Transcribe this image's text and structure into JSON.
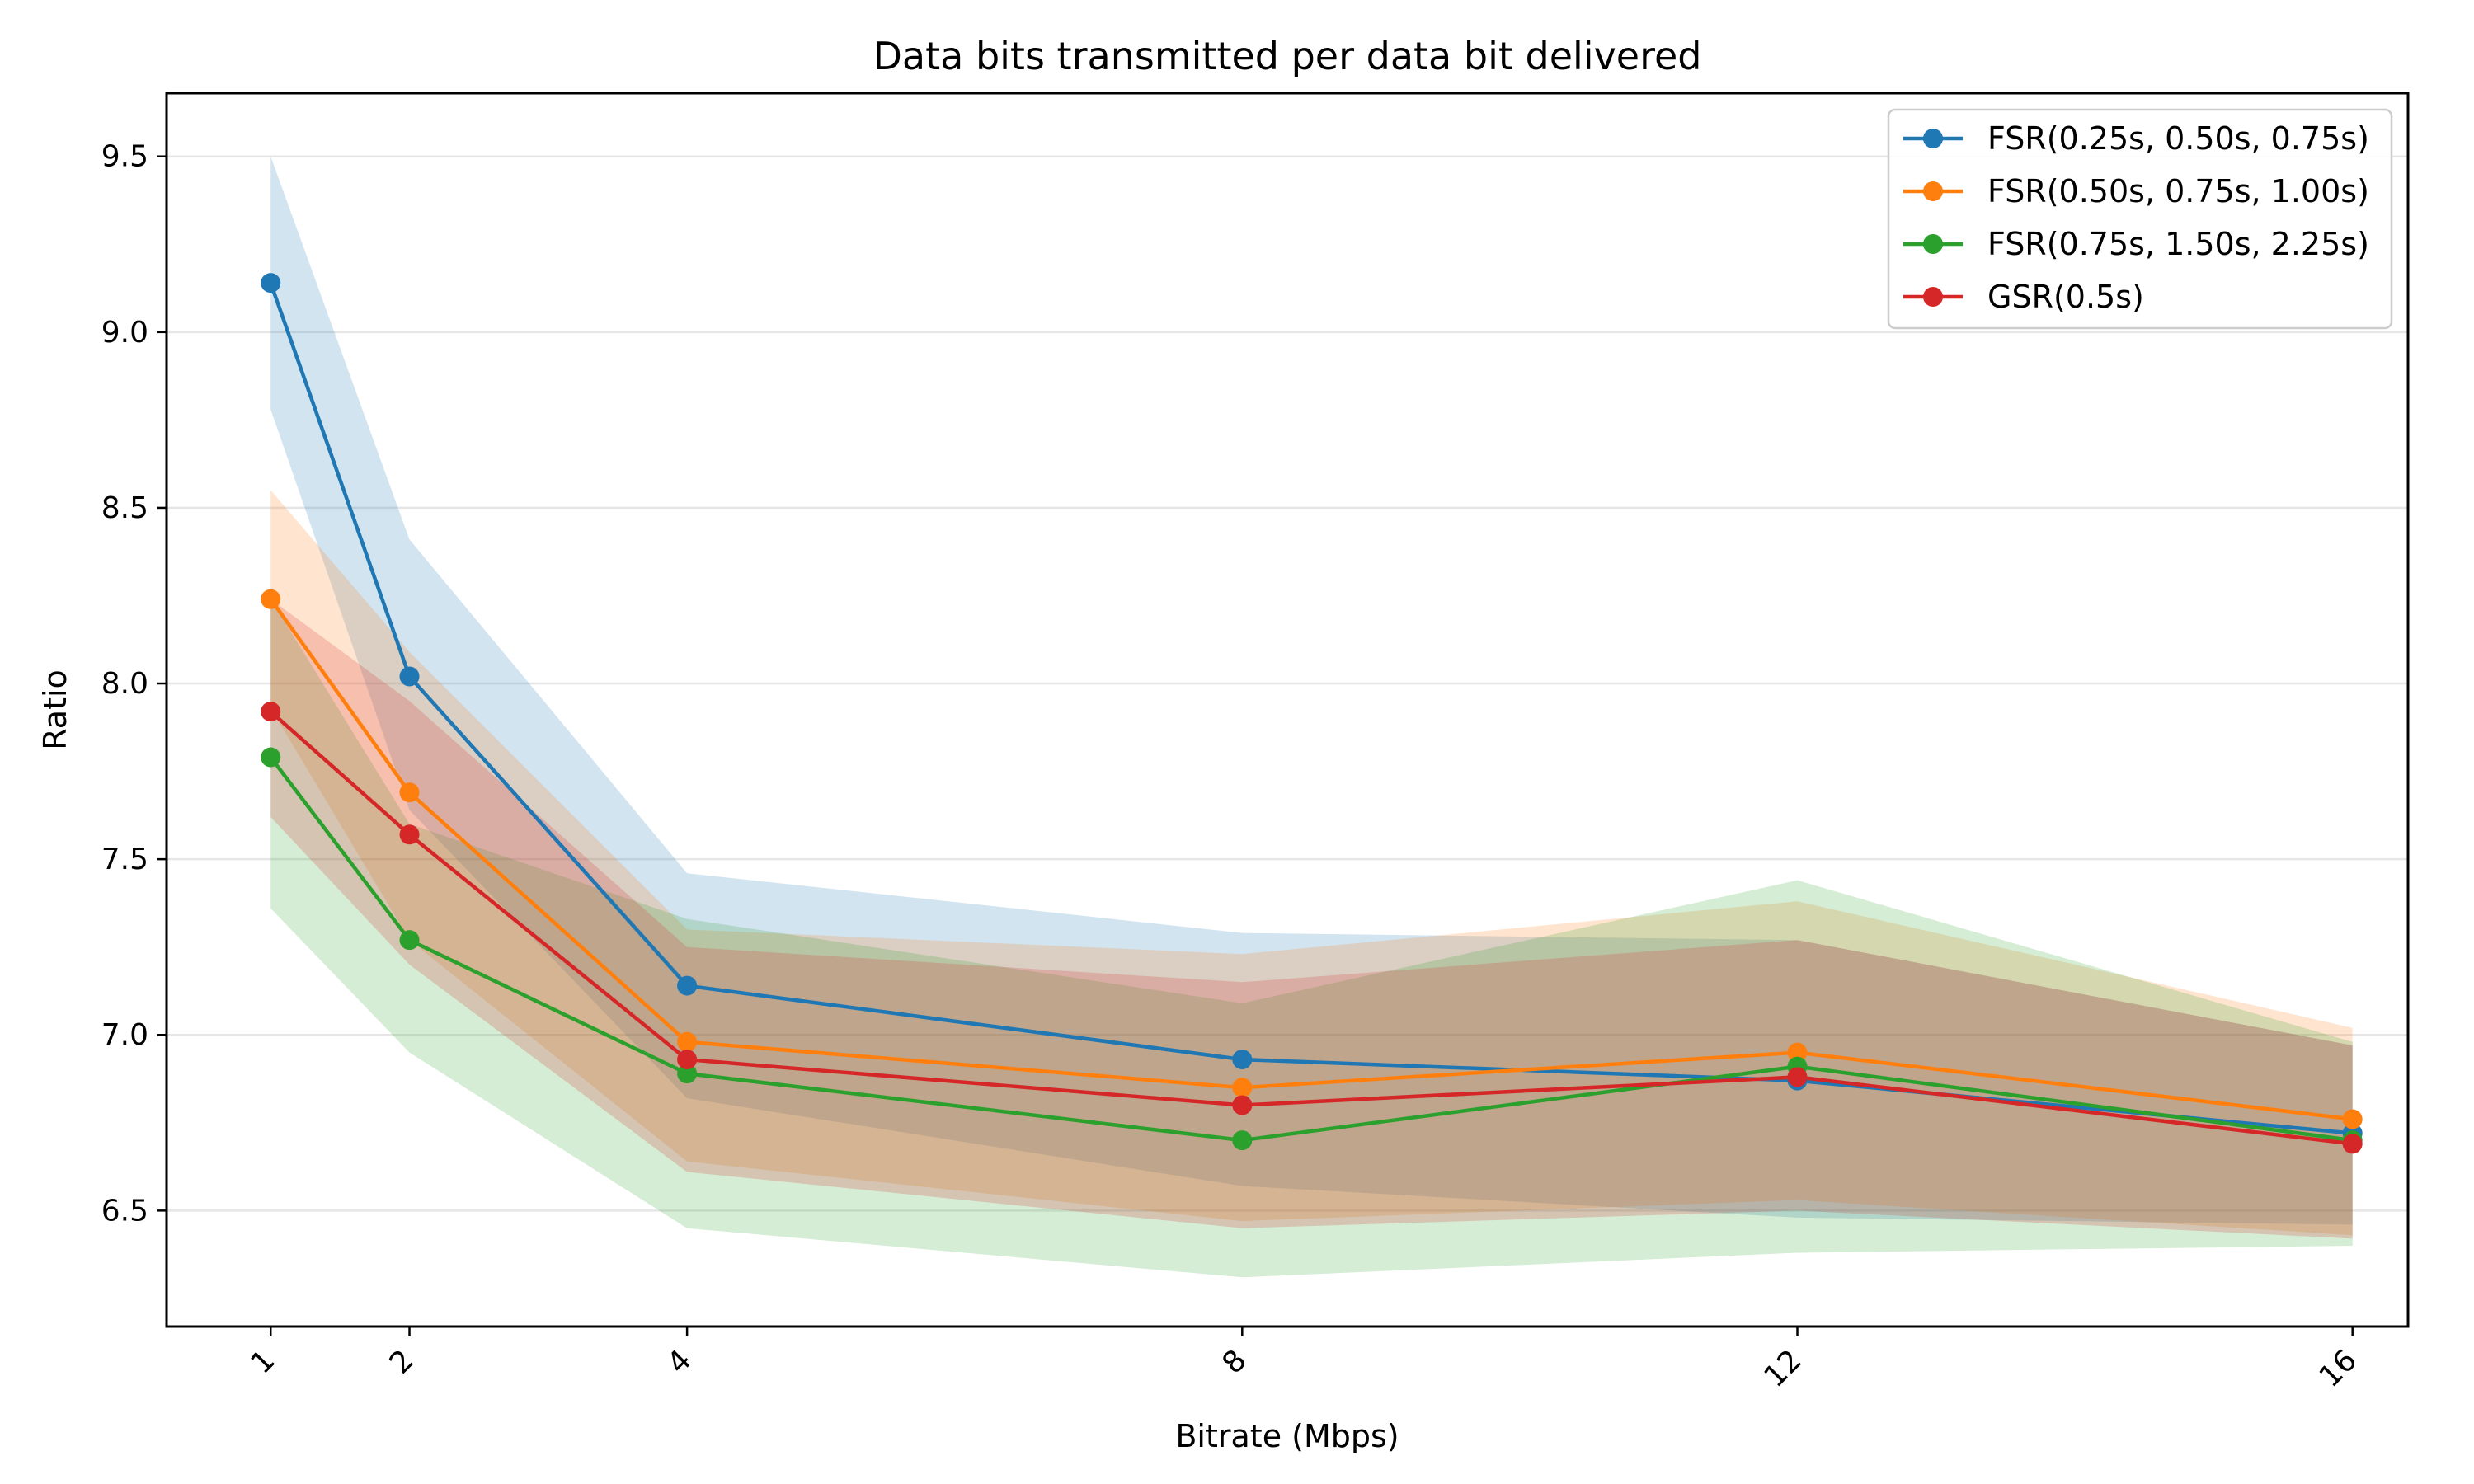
{
  "chart_data": {
    "type": "line",
    "title": "Data bits transmitted per data bit delivered",
    "xlabel": "Bitrate (Mbps)",
    "ylabel": "Ratio",
    "x": [
      1,
      2,
      4,
      8,
      12,
      16
    ],
    "x_tick_labels": [
      "1",
      "2",
      "4",
      "8",
      "12",
      "16"
    ],
    "y_ticks": [
      6.5,
      7.0,
      7.5,
      8.0,
      8.5,
      9.0,
      9.5
    ],
    "y_tick_labels": [
      "6.5",
      "7.0",
      "7.5",
      "8.0",
      "8.5",
      "9.0",
      "9.5"
    ],
    "xlim": [
      0.25,
      16.4
    ],
    "ylim": [
      6.17,
      9.68
    ],
    "grid": "horizontal",
    "legend_position": "top-right",
    "series": [
      {
        "name": "FSR(0.25s, 0.50s, 0.75s)",
        "color": "#1f77b4",
        "values": [
          9.14,
          8.02,
          7.14,
          6.93,
          6.87,
          6.72
        ],
        "band_upper": [
          9.5,
          8.41,
          7.46,
          7.29,
          7.27,
          6.97
        ],
        "band_lower": [
          8.78,
          7.64,
          6.82,
          6.57,
          6.48,
          6.46
        ]
      },
      {
        "name": "FSR(0.50s, 0.75s, 1.00s)",
        "color": "#ff7f0e",
        "values": [
          8.24,
          7.69,
          6.98,
          6.85,
          6.95,
          6.76
        ],
        "band_upper": [
          8.55,
          8.09,
          7.3,
          7.23,
          7.38,
          7.02
        ],
        "band_lower": [
          7.93,
          7.27,
          6.64,
          6.47,
          6.53,
          6.43
        ]
      },
      {
        "name": "FSR(0.75s, 1.50s, 2.25s)",
        "color": "#2ca02c",
        "values": [
          7.79,
          7.27,
          6.89,
          6.7,
          6.91,
          6.7
        ],
        "band_upper": [
          8.24,
          7.6,
          7.33,
          7.09,
          7.44,
          6.98
        ],
        "band_lower": [
          7.36,
          6.95,
          6.45,
          6.31,
          6.38,
          6.4
        ]
      },
      {
        "name": "GSR(0.5s)",
        "color": "#d62728",
        "values": [
          7.92,
          7.57,
          6.93,
          6.8,
          6.88,
          6.69
        ],
        "band_upper": [
          8.24,
          7.95,
          7.25,
          7.15,
          7.27,
          6.97
        ],
        "band_lower": [
          7.62,
          7.2,
          6.61,
          6.45,
          6.5,
          6.42
        ]
      }
    ]
  }
}
